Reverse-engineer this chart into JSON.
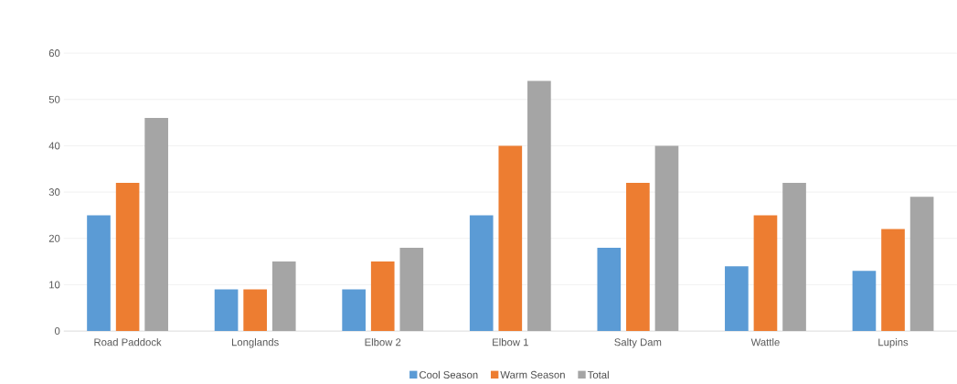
{
  "chart_data": {
    "type": "bar",
    "categories": [
      "Road Paddock",
      "Longlands",
      "Elbow 2",
      "Elbow 1",
      "Salty Dam",
      "Wattle",
      "Lupins"
    ],
    "series": [
      {
        "name": "Cool Season",
        "color": "#5b9bd5",
        "values": [
          25,
          9,
          9,
          25,
          18,
          14,
          13
        ]
      },
      {
        "name": "Warm Season",
        "color": "#ed7d31",
        "values": [
          32,
          9,
          15,
          40,
          32,
          25,
          22
        ]
      },
      {
        "name": "Total",
        "color": "#a5a5a5",
        "values": [
          46,
          15,
          18,
          54,
          40,
          32,
          29
        ]
      }
    ],
    "ylim": [
      0,
      60
    ],
    "yticks": [
      0,
      10,
      20,
      30,
      40,
      50,
      60
    ],
    "grid": "y",
    "legend": "bottom"
  }
}
